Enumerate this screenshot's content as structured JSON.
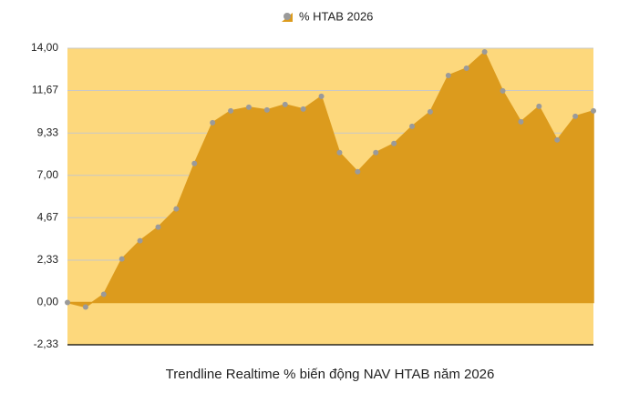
{
  "chart_data": {
    "type": "area",
    "title": "Trendline Realtime % biến động NAV HTAB năm 2026",
    "categories": [
      null,
      null,
      null,
      null,
      null,
      null,
      null,
      null,
      null,
      null,
      null,
      null,
      null,
      null,
      null,
      null,
      null,
      null,
      null,
      null,
      null,
      null,
      null,
      null,
      null,
      null,
      null,
      null,
      null,
      null
    ],
    "series": [
      {
        "name": "% HTAB 2026",
        "color": "#dc9b1d",
        "marker_color": "#9a9a9a",
        "values": [
          0,
          -0.25,
          0.45,
          2.4,
          3.4,
          4.15,
          5.15,
          7.65,
          9.9,
          10.55,
          10.75,
          10.6,
          10.9,
          10.65,
          11.35,
          8.25,
          7.2,
          8.25,
          8.75,
          9.7,
          10.5,
          12.5,
          12.9,
          13.8,
          11.65,
          9.95,
          10.8,
          8.95,
          10.25,
          10.55
        ]
      }
    ],
    "ylim": [
      -2.33,
      14
    ],
    "yticks": [
      {
        "value": -2.33,
        "label": "-2,33"
      },
      {
        "value": 0,
        "label": "0,00"
      },
      {
        "value": 2.33,
        "label": "2,33"
      },
      {
        "value": 4.67,
        "label": "4,67"
      },
      {
        "value": 7,
        "label": "7,00"
      },
      {
        "value": 9.33,
        "label": "9,33"
      },
      {
        "value": 11.67,
        "label": "11,67"
      },
      {
        "value": 14,
        "label": "14,00"
      }
    ],
    "grid": true,
    "plot_background": "#fdd87c",
    "legend": "top"
  }
}
